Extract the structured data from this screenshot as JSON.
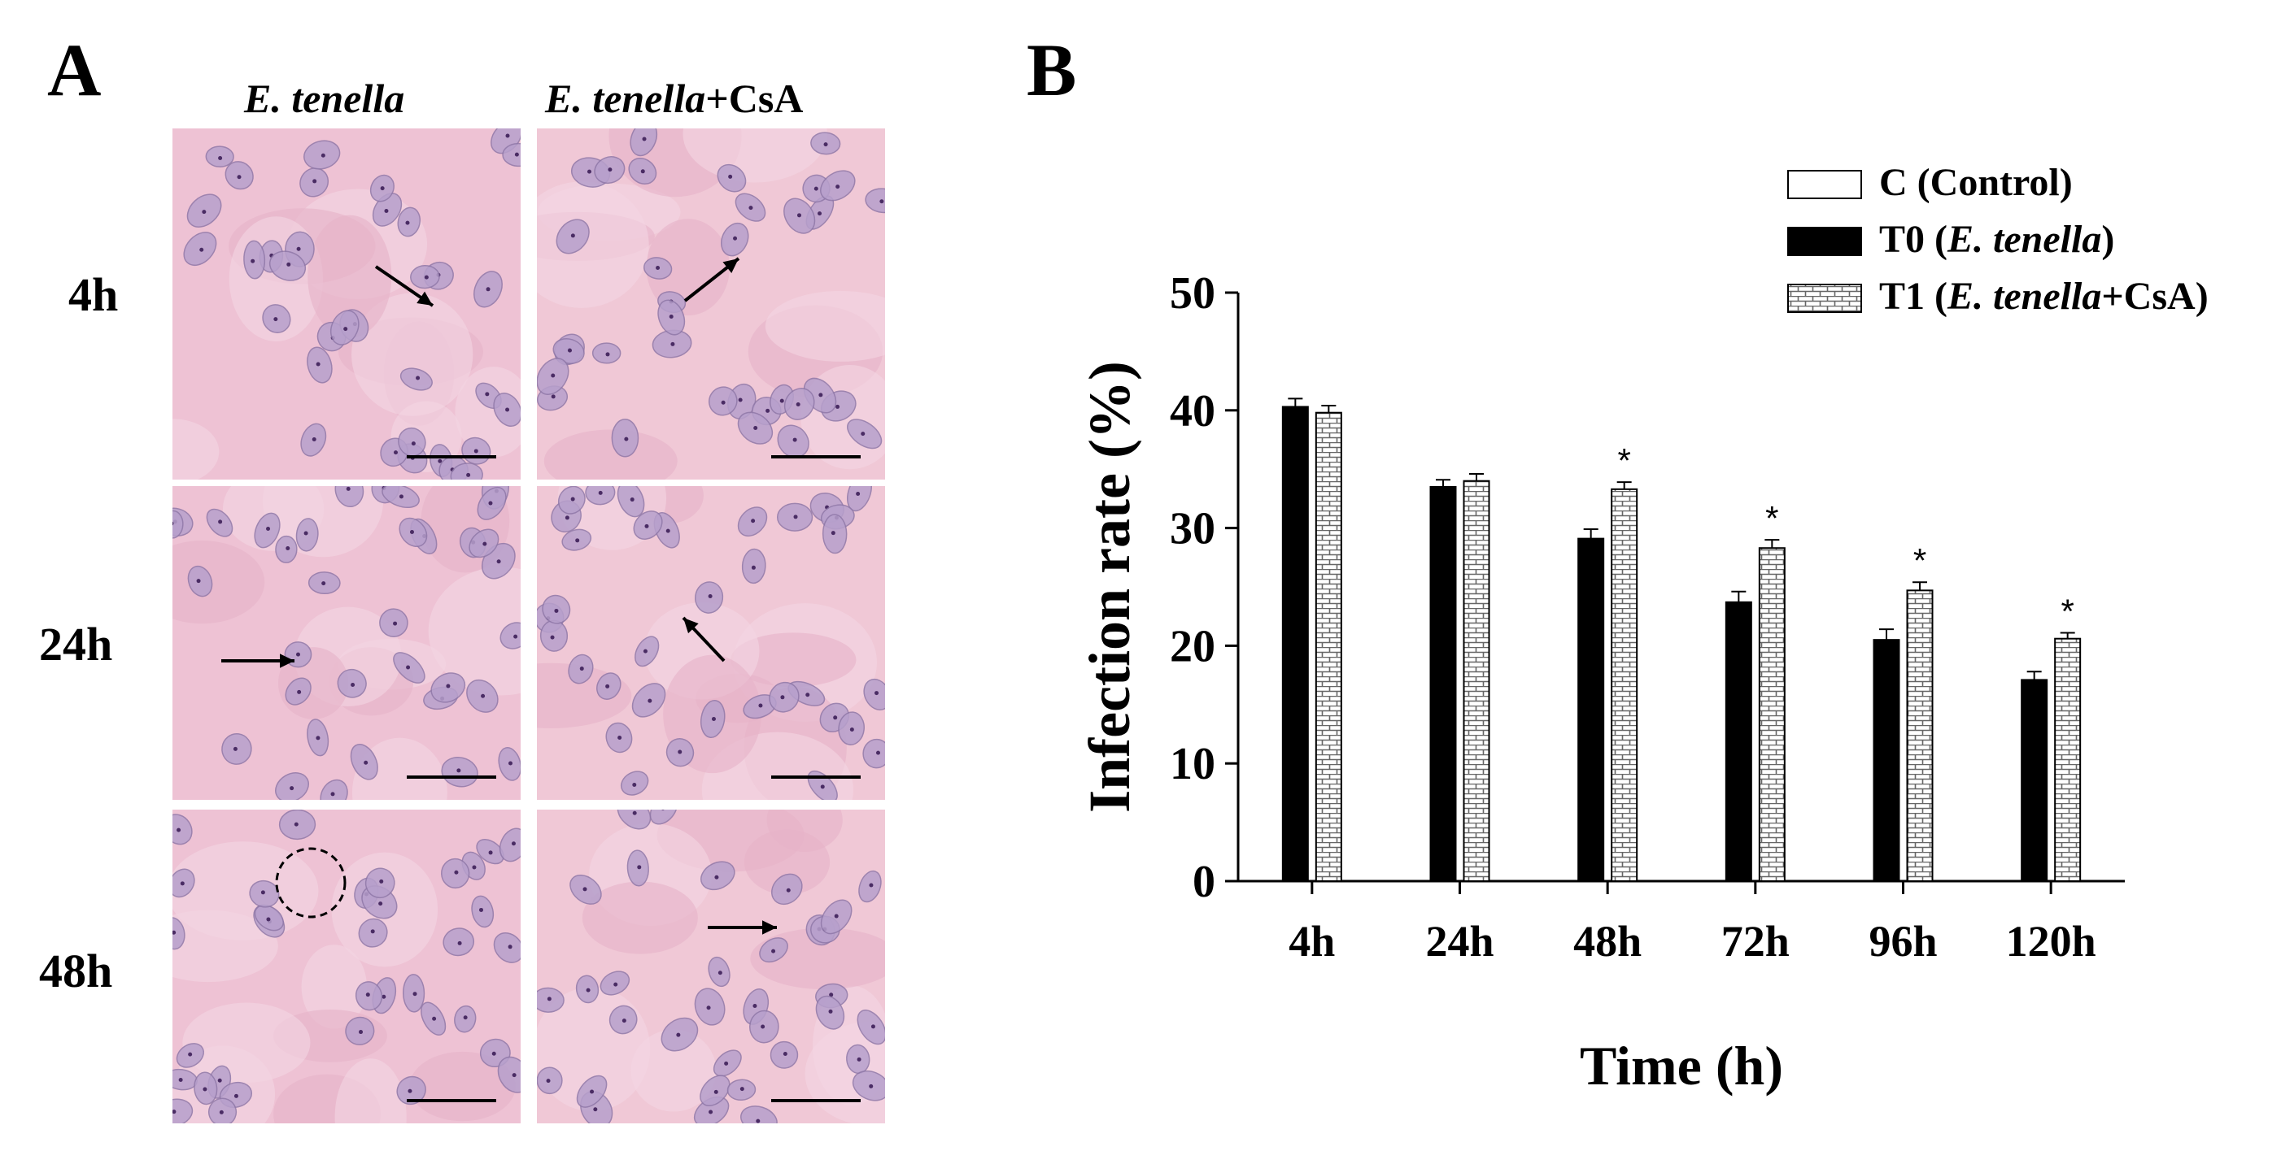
{
  "panels": {
    "a": {
      "letter": "A",
      "columns": [
        {
          "italic": "E. tenella",
          "suffix": ""
        },
        {
          "italic": "E. tenella",
          "suffix": "+CsA"
        }
      ],
      "rows": [
        "4h",
        "24h",
        "48h"
      ]
    },
    "b": {
      "letter": "B"
    }
  },
  "chart_data": {
    "type": "bar",
    "xlabel": "Time (h)",
    "ylabel": "Infection rate (%)",
    "ylim": [
      0,
      50
    ],
    "yticks": [
      0,
      10,
      20,
      30,
      40,
      50
    ],
    "categories": [
      "4h",
      "24h",
      "48h",
      "72h",
      "96h",
      "120h"
    ],
    "legend_position": "top-right",
    "legend": [
      {
        "key": "C",
        "text": "C (Control)",
        "fill": "#ffffff"
      },
      {
        "key": "T0",
        "text": "T0 (E. tenella)",
        "fill": "#000000"
      },
      {
        "key": "T1",
        "text": "T1 (E. tenella+CsA)",
        "fill": "brick-pattern"
      }
    ],
    "series": [
      {
        "name": "T0 (E. tenella)",
        "values": [
          40.3,
          33.5,
          29.1,
          23.7,
          20.5,
          17.1
        ],
        "errors": [
          0.7,
          0.6,
          0.8,
          0.9,
          0.9,
          0.7
        ]
      },
      {
        "name": "T1 (E. tenella+CsA)",
        "values": [
          39.8,
          34.0,
          33.3,
          28.3,
          24.7,
          20.6
        ],
        "errors": [
          0.6,
          0.6,
          0.6,
          0.7,
          0.7,
          0.5
        ],
        "significance": [
          "",
          "",
          "*",
          "*",
          "*",
          "*"
        ]
      }
    ]
  }
}
